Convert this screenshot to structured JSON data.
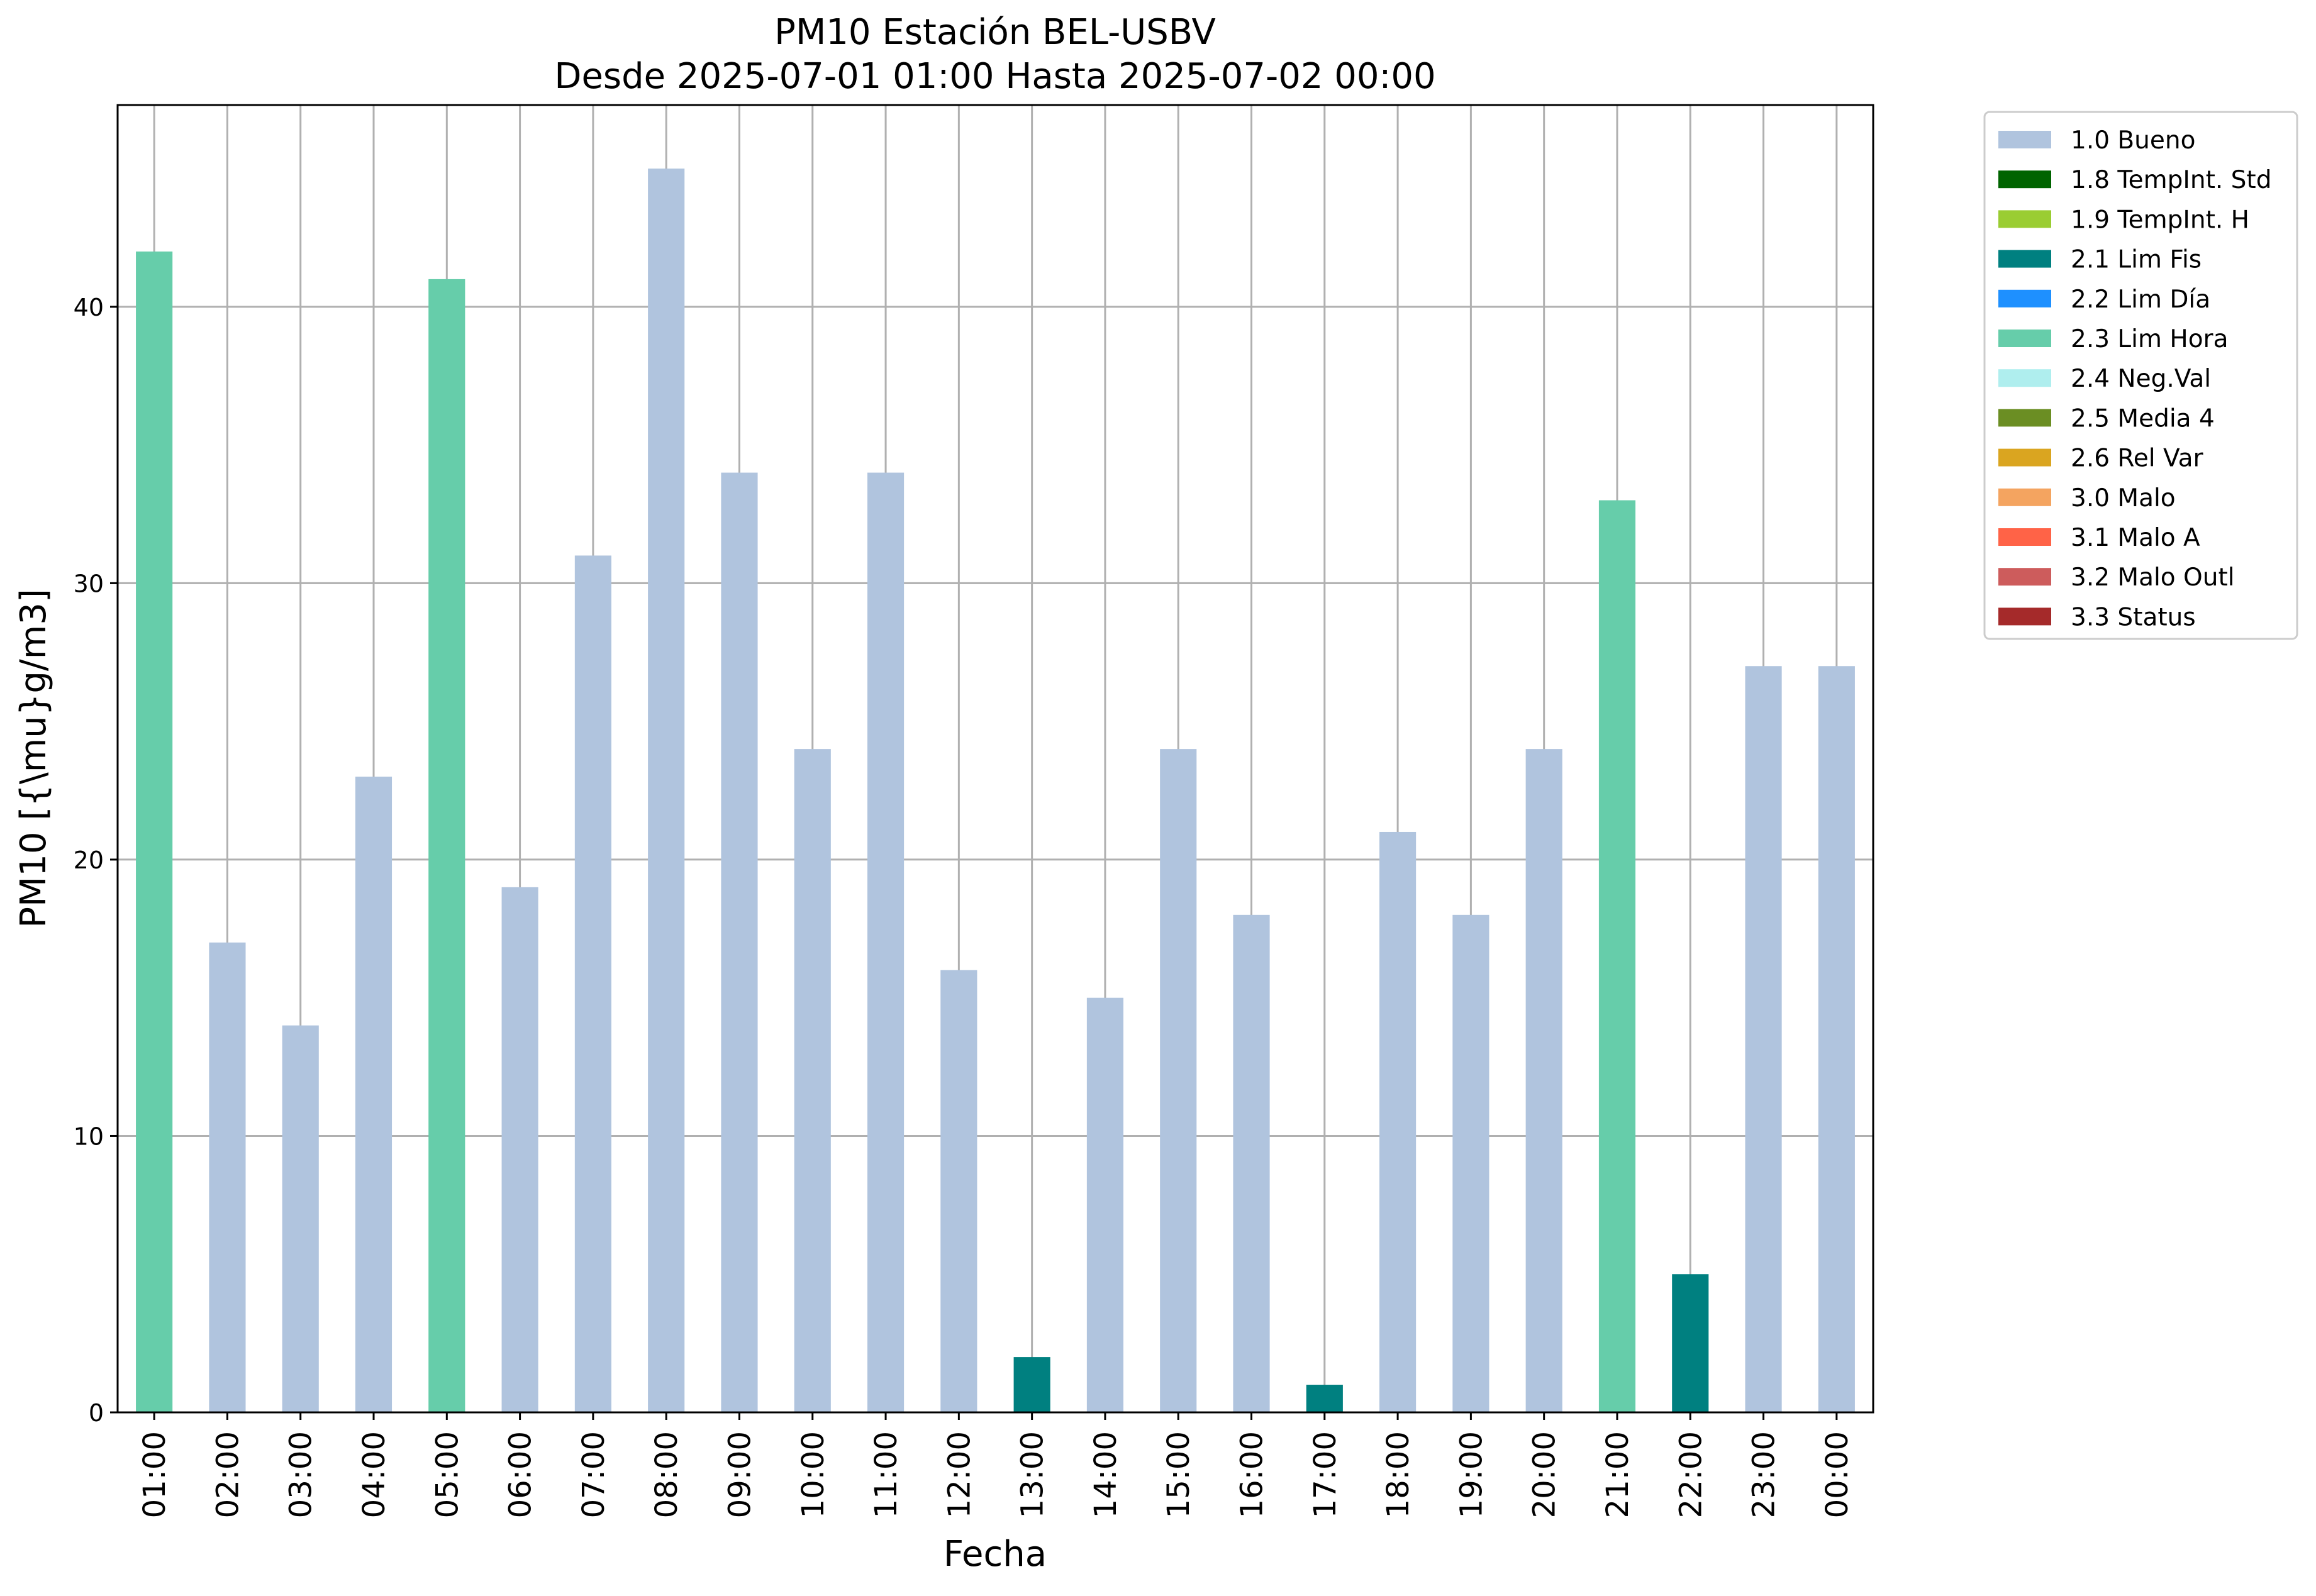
{
  "chart_data": {
    "type": "bar",
    "title_line1": "PM10 Estación BEL-USBV",
    "title_line2": "Desde 2025-07-01 01:00 Hasta 2025-07-02 00:00",
    "xlabel": "Fecha",
    "ylabel": "PM10 [{\\mu}g/m3]",
    "ylim": [
      0,
      47.3
    ],
    "yticks": [
      0,
      10,
      20,
      30,
      40
    ],
    "grid": true,
    "legend_position": "outside right, top",
    "categories": [
      "01:00",
      "02:00",
      "03:00",
      "04:00",
      "05:00",
      "06:00",
      "07:00",
      "08:00",
      "09:00",
      "10:00",
      "11:00",
      "12:00",
      "13:00",
      "14:00",
      "15:00",
      "16:00",
      "17:00",
      "18:00",
      "19:00",
      "20:00",
      "21:00",
      "22:00",
      "23:00",
      "00:00"
    ],
    "values": [
      42,
      17,
      14,
      23,
      41,
      19,
      31,
      45,
      34,
      24,
      34,
      16,
      2,
      15,
      24,
      18,
      1,
      21,
      18,
      24,
      33,
      5,
      27,
      27
    ],
    "flags": [
      "2.3",
      "1.0",
      "1.0",
      "1.0",
      "2.3",
      "1.0",
      "1.0",
      "1.0",
      "1.0",
      "1.0",
      "1.0",
      "1.0",
      "2.1",
      "1.0",
      "1.0",
      "1.0",
      "2.1",
      "1.0",
      "1.0",
      "1.0",
      "2.3",
      "2.1",
      "1.0",
      "1.0"
    ],
    "legend": [
      {
        "code": "1.0",
        "label": "1.0 Bueno",
        "color": "#b0c4de"
      },
      {
        "code": "1.8",
        "label": "1.8 TempInt. Std",
        "color": "#006400"
      },
      {
        "code": "1.9",
        "label": "1.9 TempInt. H",
        "color": "#9acd32"
      },
      {
        "code": "2.1",
        "label": "2.1 Lim Fis",
        "color": "#008080"
      },
      {
        "code": "2.2",
        "label": "2.2 Lim Día",
        "color": "#1e90ff"
      },
      {
        "code": "2.3",
        "label": "2.3 Lim Hora",
        "color": "#66cdaa"
      },
      {
        "code": "2.4",
        "label": "2.4 Neg.Val",
        "color": "#afeeee"
      },
      {
        "code": "2.5",
        "label": "2.5 Media 4",
        "color": "#6b8e23"
      },
      {
        "code": "2.6",
        "label": "2.6 Rel Var",
        "color": "#daa520"
      },
      {
        "code": "3.0",
        "label": "3.0 Malo",
        "color": "#f4a460"
      },
      {
        "code": "3.1",
        "label": "3.1 Malo A",
        "color": "#ff6347"
      },
      {
        "code": "3.2",
        "label": "3.2 Malo Outl",
        "color": "#cd5c5c"
      },
      {
        "code": "3.3",
        "label": "3.3 Status",
        "color": "#a52a2a"
      }
    ]
  }
}
